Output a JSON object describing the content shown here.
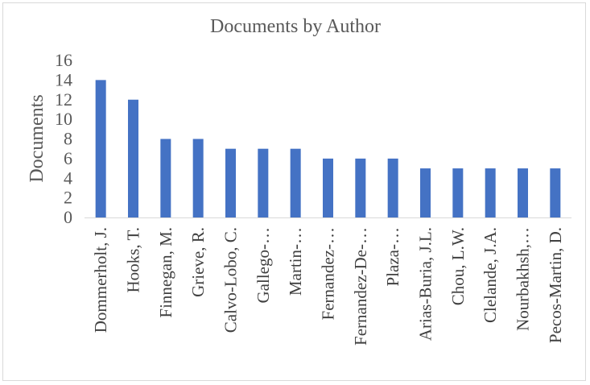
{
  "chart_data": {
    "type": "bar",
    "title": "Documents by Author",
    "xlabel": "",
    "ylabel": "Documents",
    "ylim": [
      0,
      16
    ],
    "yticks": [
      0,
      2,
      4,
      6,
      8,
      10,
      12,
      14,
      16
    ],
    "grid": false,
    "legend": "none",
    "bar_color": "#4472C4",
    "categories": [
      "Dommerholt, J.",
      "Hooks, T.",
      "Finnegan, M.",
      "Grieve, R.",
      "Calvo-Lobo, C.",
      "Gallego-…",
      "Martin-…",
      "Fernandez-…",
      "Fernandez-De-…",
      "Plaza-…",
      "Arias-Buria, J.L.",
      "Chou, L.W.",
      "Clelande, J.A.",
      "Nourbakhsh,…",
      "Pecos-Martin, D."
    ],
    "values": [
      14,
      12,
      8,
      8,
      7,
      7,
      7,
      6,
      6,
      6,
      5,
      5,
      5,
      5,
      5
    ]
  }
}
